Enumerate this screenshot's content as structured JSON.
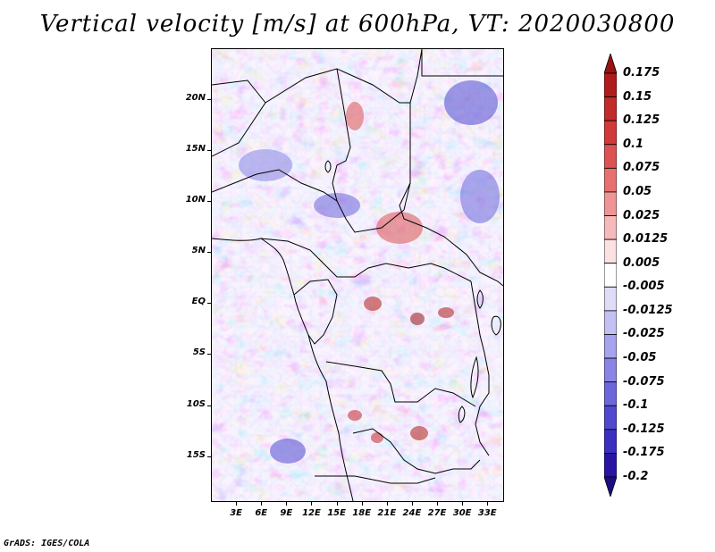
{
  "title": "Vertical velocity [m/s] at 600hPa, VT: 2020030800",
  "footer": "GrADS: IGES/COLA",
  "map": {
    "variable": "Vertical velocity",
    "units": "m/s",
    "level": "600hPa",
    "valid_time": "2020030800",
    "lat_labels": [
      "20N",
      "15N",
      "10N",
      "5N",
      "EQ",
      "5S",
      "10S",
      "15S"
    ],
    "lat_values": [
      20,
      15,
      10,
      5,
      0,
      -5,
      -10,
      -15
    ],
    "lon_labels": [
      "3E",
      "6E",
      "9E",
      "12E",
      "15E",
      "18E",
      "21E",
      "24E",
      "27E",
      "30E",
      "33E"
    ],
    "lon_values": [
      3,
      6,
      9,
      12,
      15,
      18,
      21,
      24,
      27,
      30,
      33
    ],
    "extent": {
      "lon_min": 0,
      "lon_max": 35,
      "lat_min": -19.5,
      "lat_max": 25
    }
  },
  "colorbar": {
    "labels": [
      "0.175",
      "0.15",
      "0.125",
      "0.1",
      "0.075",
      "0.05",
      "0.025",
      "0.0125",
      "0.005",
      "-0.005",
      "-0.0125",
      "-0.025",
      "-0.05",
      "-0.075",
      "-0.1",
      "-0.125",
      "-0.175",
      "-0.2"
    ],
    "colors": [
      "#9a1212",
      "#b01c1c",
      "#c32a2a",
      "#d23a3a",
      "#dd5353",
      "#e77171",
      "#ef9595",
      "#f6baba",
      "#fbe1e1",
      "#ffffff",
      "#dedcf6",
      "#c3c1f1",
      "#a7a3ec",
      "#8a85e4",
      "#6d67dc",
      "#5049cf",
      "#3b2fc1",
      "#2a14a4",
      "#1c0e80"
    ]
  }
}
